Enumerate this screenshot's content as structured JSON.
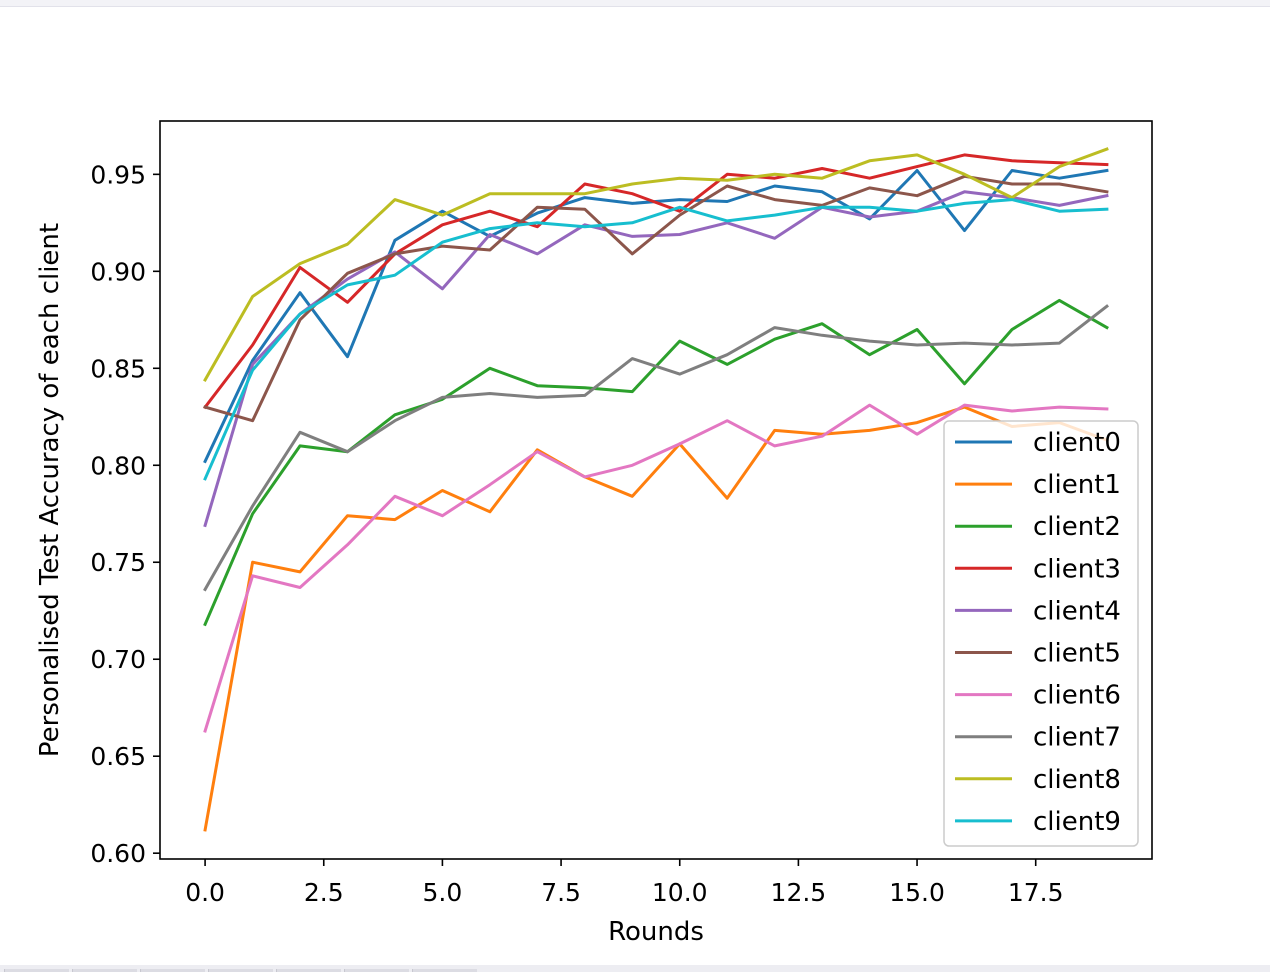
{
  "chart_data": {
    "type": "line",
    "title": "",
    "xlabel": "Rounds",
    "ylabel": "Personalised Test Accuracy of each client",
    "xlim": [
      -0.95,
      19.95
    ],
    "ylim": [
      0.597,
      0.9775
    ],
    "xticks": [
      0.0,
      2.5,
      5.0,
      7.5,
      10.0,
      12.5,
      15.0,
      17.5
    ],
    "xtick_labels": [
      "0.0",
      "2.5",
      "5.0",
      "7.5",
      "10.0",
      "12.5",
      "15.0",
      "17.5"
    ],
    "yticks": [
      0.6,
      0.65,
      0.7,
      0.75,
      0.8,
      0.85,
      0.9,
      0.95
    ],
    "ytick_labels": [
      "0.60",
      "0.65",
      "0.70",
      "0.75",
      "0.80",
      "0.85",
      "0.90",
      "0.95"
    ],
    "grid": false,
    "legend_position": "lower-right",
    "x": [
      0,
      1,
      2,
      3,
      4,
      5,
      6,
      7,
      8,
      9,
      10,
      11,
      12,
      13,
      14,
      15,
      16,
      17,
      18,
      19
    ],
    "series": [
      {
        "name": "client0",
        "color": "#1f77b4",
        "values": [
          0.802,
          0.854,
          0.889,
          0.856,
          0.916,
          0.931,
          0.918,
          0.93,
          0.938,
          0.935,
          0.937,
          0.936,
          0.944,
          0.941,
          0.927,
          0.952,
          0.921,
          0.952,
          0.948,
          0.952
        ]
      },
      {
        "name": "client1",
        "color": "#ff7f0e",
        "values": [
          0.612,
          0.75,
          0.745,
          0.774,
          0.772,
          0.787,
          0.776,
          0.808,
          0.794,
          0.784,
          0.811,
          0.783,
          0.818,
          0.816,
          0.818,
          0.822,
          0.83,
          0.82,
          0.822,
          0.813
        ]
      },
      {
        "name": "client2",
        "color": "#2ca02c",
        "values": [
          0.718,
          0.775,
          0.81,
          0.807,
          0.826,
          0.834,
          0.85,
          0.841,
          0.84,
          0.838,
          0.864,
          0.852,
          0.865,
          0.873,
          0.857,
          0.87,
          0.842,
          0.87,
          0.885,
          0.871
        ]
      },
      {
        "name": "client3",
        "color": "#d62728",
        "values": [
          0.83,
          0.862,
          0.902,
          0.884,
          0.909,
          0.924,
          0.931,
          0.923,
          0.945,
          0.94,
          0.931,
          0.95,
          0.948,
          0.953,
          0.948,
          0.954,
          0.96,
          0.957,
          0.956,
          0.955
        ]
      },
      {
        "name": "client4",
        "color": "#9467bd",
        "values": [
          0.769,
          0.852,
          0.878,
          0.896,
          0.91,
          0.891,
          0.919,
          0.909,
          0.924,
          0.918,
          0.919,
          0.925,
          0.917,
          0.933,
          0.928,
          0.931,
          0.941,
          0.938,
          0.934,
          0.939
        ]
      },
      {
        "name": "client5",
        "color": "#8c564b",
        "values": [
          0.83,
          0.823,
          0.875,
          0.899,
          0.909,
          0.913,
          0.911,
          0.933,
          0.932,
          0.909,
          0.929,
          0.944,
          0.937,
          0.934,
          0.943,
          0.939,
          0.949,
          0.945,
          0.945,
          0.941
        ]
      },
      {
        "name": "client6",
        "color": "#e377c2",
        "values": [
          0.663,
          0.743,
          0.737,
          0.759,
          0.784,
          0.774,
          0.79,
          0.807,
          0.794,
          0.8,
          0.811,
          0.823,
          0.81,
          0.815,
          0.831,
          0.816,
          0.831,
          0.828,
          0.83,
          0.829
        ]
      },
      {
        "name": "client7",
        "color": "#7f7f7f",
        "values": [
          0.736,
          0.779,
          0.817,
          0.807,
          0.823,
          0.835,
          0.837,
          0.835,
          0.836,
          0.855,
          0.847,
          0.857,
          0.871,
          0.867,
          0.864,
          0.862,
          0.863,
          0.862,
          0.863,
          0.882
        ]
      },
      {
        "name": "client8",
        "color": "#bcbd22",
        "values": [
          0.844,
          0.887,
          0.904,
          0.914,
          0.937,
          0.929,
          0.94,
          0.94,
          0.94,
          0.945,
          0.948,
          0.947,
          0.95,
          0.948,
          0.957,
          0.96,
          0.95,
          0.938,
          0.954,
          0.963
        ]
      },
      {
        "name": "client9",
        "color": "#17becf",
        "values": [
          0.793,
          0.849,
          0.878,
          0.893,
          0.898,
          0.915,
          0.922,
          0.925,
          0.923,
          0.925,
          0.933,
          0.926,
          0.929,
          0.933,
          0.933,
          0.931,
          0.935,
          0.937,
          0.931,
          0.932
        ]
      }
    ]
  }
}
